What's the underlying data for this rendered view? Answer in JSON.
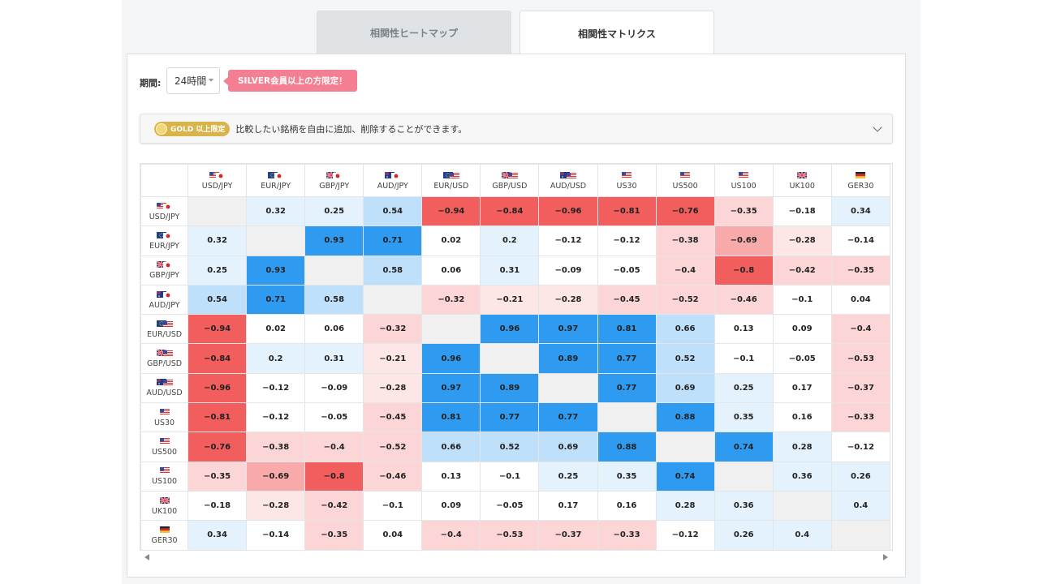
{
  "tabs": {
    "heatmap_label": "相関性ヒートマップ",
    "matrix_label": "相関性マトリクス",
    "active": "matrix"
  },
  "controls": {
    "period_label": "期間:",
    "period_value": "24時間",
    "silver_badge": "SILVER会員以上の方限定！"
  },
  "gold_bar": {
    "badge": "GOLD 以上限定",
    "text": "比較したい銘柄を自由に追加、削除することができます。"
  },
  "colors": {
    "positive_strong": "#2f9bf0",
    "positive_light": "#bfe0fb",
    "negative_strong": "#f25e5e",
    "negative_light": "#fcd6d6",
    "diagonal": "#f0f0f0"
  },
  "symbols": [
    {
      "label": "USD/JPY",
      "flags": [
        "us",
        "jp"
      ]
    },
    {
      "label": "EUR/JPY",
      "flags": [
        "eu",
        "jp"
      ]
    },
    {
      "label": "GBP/JPY",
      "flags": [
        "gb",
        "jp"
      ]
    },
    {
      "label": "AUD/JPY",
      "flags": [
        "au",
        "jp"
      ]
    },
    {
      "label": "EUR/USD",
      "flags": [
        "eu",
        "us"
      ]
    },
    {
      "label": "GBP/USD",
      "flags": [
        "gb",
        "us"
      ]
    },
    {
      "label": "AUD/USD",
      "flags": [
        "au",
        "us"
      ]
    },
    {
      "label": "US30",
      "flags": [
        "us"
      ]
    },
    {
      "label": "US500",
      "flags": [
        "us"
      ]
    },
    {
      "label": "US100",
      "flags": [
        "us"
      ]
    },
    {
      "label": "UK100",
      "flags": [
        "gb"
      ]
    },
    {
      "label": "GER30",
      "flags": [
        "de"
      ]
    }
  ],
  "matrix": [
    [
      null,
      0.32,
      0.25,
      0.54,
      -0.94,
      -0.84,
      -0.96,
      -0.81,
      -0.76,
      -0.35,
      -0.18,
      0.34
    ],
    [
      0.32,
      null,
      0.93,
      0.71,
      0.02,
      0.2,
      -0.12,
      -0.12,
      -0.38,
      -0.69,
      -0.28,
      -0.14
    ],
    [
      0.25,
      0.93,
      null,
      0.58,
      0.06,
      0.31,
      -0.09,
      -0.05,
      -0.4,
      -0.8,
      -0.42,
      -0.35
    ],
    [
      0.54,
      0.71,
      0.58,
      null,
      -0.32,
      -0.21,
      -0.28,
      -0.45,
      -0.52,
      -0.46,
      -0.1,
      0.04
    ],
    [
      -0.94,
      0.02,
      0.06,
      -0.32,
      null,
      0.96,
      0.97,
      0.81,
      0.66,
      0.13,
      0.09,
      -0.4
    ],
    [
      -0.84,
      0.2,
      0.31,
      -0.21,
      0.96,
      null,
      0.89,
      0.77,
      0.52,
      -0.1,
      -0.05,
      -0.53
    ],
    [
      -0.96,
      -0.12,
      -0.09,
      -0.28,
      0.97,
      0.89,
      null,
      0.77,
      0.69,
      0.25,
      0.17,
      -0.37
    ],
    [
      -0.81,
      -0.12,
      -0.05,
      -0.45,
      0.81,
      0.77,
      0.77,
      null,
      0.88,
      0.35,
      0.16,
      -0.33
    ],
    [
      -0.76,
      -0.38,
      -0.4,
      -0.52,
      0.66,
      0.52,
      0.69,
      0.88,
      null,
      0.74,
      0.28,
      -0.12
    ],
    [
      -0.35,
      -0.69,
      -0.8,
      -0.46,
      0.13,
      -0.1,
      0.25,
      0.35,
      0.74,
      null,
      0.36,
      0.26
    ],
    [
      -0.18,
      -0.28,
      -0.42,
      -0.1,
      0.09,
      -0.05,
      0.17,
      0.16,
      0.28,
      0.36,
      null,
      0.4
    ],
    [
      0.34,
      -0.14,
      -0.35,
      0.04,
      -0.4,
      -0.53,
      -0.37,
      -0.33,
      -0.12,
      0.26,
      0.4,
      null
    ]
  ]
}
